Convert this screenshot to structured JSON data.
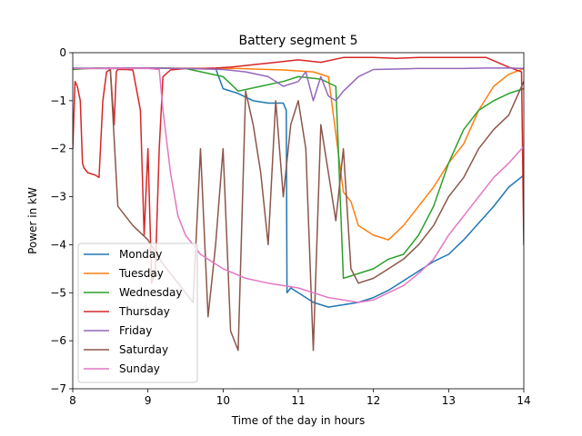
{
  "chart_data": {
    "type": "line",
    "title": "Battery segment 5",
    "xlabel": "Time of the day in hours",
    "ylabel": "Power in kW",
    "xlim": [
      8,
      14
    ],
    "ylim": [
      -7,
      0
    ],
    "xticks": [
      "8",
      "9",
      "10",
      "11",
      "12",
      "13",
      "14"
    ],
    "yticks": [
      "0",
      "−1",
      "−2",
      "−3",
      "−4",
      "−5",
      "−6",
      "−7"
    ],
    "grid": false,
    "legend_position": "lower-left",
    "series": [
      {
        "name": "Monday",
        "color": "#1f77b4",
        "x": [
          8.0,
          8.5,
          9.0,
          9.5,
          9.9,
          10.0,
          10.2,
          10.4,
          10.6,
          10.8,
          10.84,
          10.85,
          10.9,
          11.0,
          11.2,
          11.4,
          11.6,
          11.8,
          12.0,
          12.2,
          12.4,
          12.6,
          12.8,
          13.0,
          13.2,
          13.4,
          13.6,
          13.8,
          14.0
        ],
        "y": [
          -0.32,
          -0.33,
          -0.32,
          -0.33,
          -0.33,
          -0.75,
          -0.85,
          -1.0,
          -1.05,
          -1.05,
          -1.2,
          -5.0,
          -4.9,
          -5.0,
          -5.2,
          -5.3,
          -5.25,
          -5.2,
          -5.1,
          -4.95,
          -4.75,
          -4.55,
          -4.35,
          -4.2,
          -3.9,
          -3.55,
          -3.2,
          -2.8,
          -2.55
        ]
      },
      {
        "name": "Tuesday",
        "color": "#ff7f0e",
        "x": [
          8.0,
          9.0,
          10.0,
          10.2,
          10.4,
          10.6,
          10.8,
          11.0,
          11.2,
          11.4,
          11.6,
          11.7,
          11.8,
          12.0,
          12.2,
          12.4,
          12.6,
          12.8,
          13.0,
          13.2,
          13.4,
          13.6,
          13.8,
          14.0
        ],
        "y": [
          -0.33,
          -0.32,
          -0.33,
          -0.33,
          -0.34,
          -0.35,
          -0.36,
          -0.38,
          -0.4,
          -0.5,
          -2.9,
          -3.1,
          -3.6,
          -3.8,
          -3.9,
          -3.6,
          -3.2,
          -2.8,
          -2.3,
          -1.9,
          -1.2,
          -0.7,
          -0.45,
          -0.33
        ]
      },
      {
        "name": "Wednesday",
        "color": "#2ca02c",
        "x": [
          8.0,
          8.3,
          8.6,
          9.0,
          9.5,
          10.0,
          10.2,
          10.5,
          10.8,
          11.0,
          11.3,
          11.5,
          11.6,
          11.8,
          12.0,
          12.2,
          12.4,
          12.6,
          12.8,
          13.0,
          13.2,
          13.4,
          13.6,
          13.8,
          14.0
        ],
        "y": [
          -0.35,
          -0.32,
          -0.33,
          -0.32,
          -0.33,
          -0.5,
          -0.8,
          -0.7,
          -0.6,
          -0.5,
          -0.55,
          -0.7,
          -4.7,
          -4.6,
          -4.5,
          -4.3,
          -4.2,
          -3.8,
          -3.2,
          -2.3,
          -1.6,
          -1.2,
          -1.0,
          -0.85,
          -0.75
        ]
      },
      {
        "name": "Thursday",
        "color": "#d62728",
        "x": [
          8.0,
          8.03,
          8.06,
          8.1,
          8.13,
          8.15,
          8.2,
          8.3,
          8.35,
          8.4,
          8.45,
          8.5,
          8.55,
          8.58,
          8.6,
          8.7,
          8.8,
          8.9,
          8.95,
          9.0,
          9.05,
          9.1,
          9.15,
          9.2,
          9.3,
          9.5,
          9.7,
          9.9,
          10.1,
          10.4,
          10.7,
          11.0,
          11.3,
          11.6,
          11.8,
          12.0,
          12.3,
          12.6,
          12.9,
          13.2,
          13.5,
          13.8,
          13.97,
          14.0
        ],
        "y": [
          -2.0,
          -0.6,
          -0.7,
          -1.0,
          -2.3,
          -2.4,
          -2.5,
          -2.55,
          -2.6,
          -1.0,
          -0.4,
          -0.35,
          -1.5,
          -0.4,
          -0.35,
          -0.35,
          -0.36,
          -1.2,
          -3.8,
          -2.0,
          -4.8,
          -4.5,
          -2.0,
          -0.5,
          -0.36,
          -0.33,
          -0.33,
          -0.32,
          -0.3,
          -0.25,
          -0.2,
          -0.15,
          -0.2,
          -0.1,
          -0.1,
          -0.1,
          -0.12,
          -0.1,
          -0.1,
          -0.1,
          -0.1,
          -0.3,
          -0.4,
          -4.0
        ]
      },
      {
        "name": "Friday",
        "color": "#9467bd",
        "x": [
          8.0,
          8.5,
          9.0,
          9.5,
          10.0,
          10.3,
          10.6,
          10.8,
          11.0,
          11.1,
          11.2,
          11.3,
          11.4,
          11.5,
          11.6,
          11.8,
          12.0,
          12.3,
          12.6,
          12.9,
          13.2,
          13.5,
          13.8,
          14.0
        ],
        "y": [
          -0.33,
          -0.32,
          -0.32,
          -0.33,
          -0.35,
          -0.4,
          -0.5,
          -0.7,
          -0.6,
          -0.4,
          -1.0,
          -0.5,
          -0.9,
          -1.0,
          -0.8,
          -0.5,
          -0.35,
          -0.34,
          -0.33,
          -0.33,
          -0.33,
          -0.32,
          -0.32,
          -0.33
        ]
      },
      {
        "name": "Saturday",
        "color": "#8c564b",
        "x": [
          8.0,
          8.5,
          8.6,
          8.8,
          9.0,
          9.2,
          9.4,
          9.6,
          9.7,
          9.8,
          9.9,
          10.0,
          10.1,
          10.2,
          10.3,
          10.4,
          10.5,
          10.6,
          10.7,
          10.8,
          10.9,
          11.0,
          11.1,
          11.2,
          11.3,
          11.4,
          11.5,
          11.6,
          11.7,
          11.8,
          12.0,
          12.2,
          12.4,
          12.6,
          12.8,
          13.0,
          13.2,
          13.4,
          13.6,
          13.8,
          14.0
        ],
        "y": [
          -0.33,
          -0.33,
          -3.2,
          -3.6,
          -3.9,
          -4.4,
          -4.8,
          -5.2,
          -2.0,
          -5.5,
          -4.0,
          -2.0,
          -5.8,
          -6.2,
          -0.8,
          -1.5,
          -2.5,
          -4.0,
          -1.0,
          -3.0,
          -1.5,
          -1.0,
          -2.0,
          -6.2,
          -1.5,
          -2.5,
          -3.5,
          -2.0,
          -4.5,
          -4.8,
          -4.7,
          -4.5,
          -4.3,
          -4.0,
          -3.6,
          -3.0,
          -2.6,
          -2.0,
          -1.6,
          -1.3,
          -0.6
        ]
      },
      {
        "name": "Sunday",
        "color": "#e377c2",
        "x": [
          8.0,
          8.5,
          9.0,
          9.15,
          9.2,
          9.3,
          9.4,
          9.5,
          9.7,
          10.0,
          10.3,
          10.6,
          10.8,
          11.0,
          11.2,
          11.4,
          11.6,
          11.8,
          12.0,
          12.2,
          12.4,
          12.6,
          12.8,
          13.0,
          13.2,
          13.4,
          13.6,
          13.8,
          14.0
        ],
        "y": [
          -0.33,
          -0.33,
          -0.33,
          -0.35,
          -1.2,
          -2.5,
          -3.4,
          -3.8,
          -4.2,
          -4.5,
          -4.7,
          -4.8,
          -4.85,
          -4.9,
          -5.0,
          -5.1,
          -5.15,
          -5.2,
          -5.15,
          -5.0,
          -4.85,
          -4.6,
          -4.3,
          -3.8,
          -3.4,
          -3.0,
          -2.6,
          -2.3,
          -1.95
        ]
      }
    ]
  }
}
